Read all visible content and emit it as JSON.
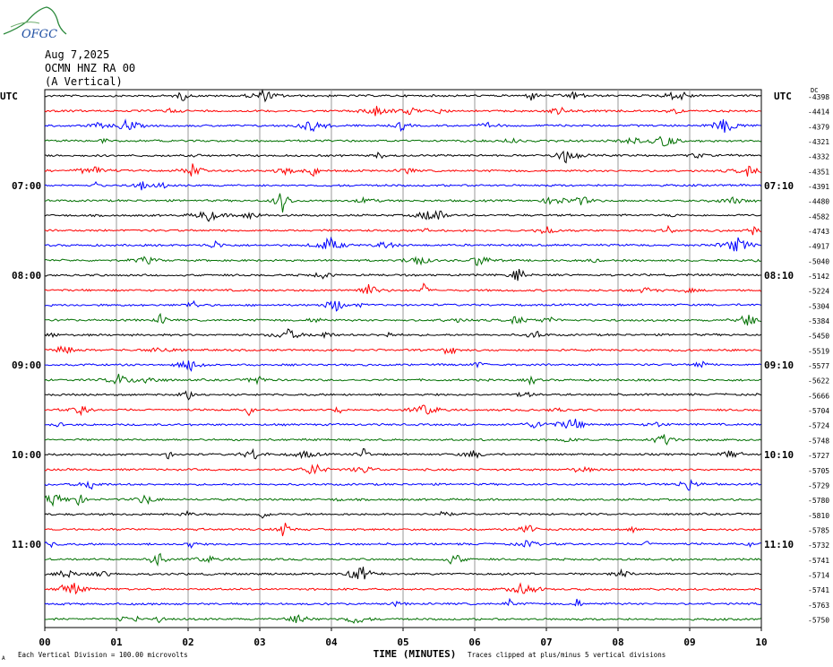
{
  "header": {
    "logo_text": "OFGC",
    "date": "Aug 7,2025",
    "station": "OCMN HNZ RA 00",
    "component": "(A Vertical)"
  },
  "chart_data": {
    "type": "line",
    "title": "",
    "left_axis_label": "UTC",
    "right_axis_label": "UTC",
    "units_label": "DC",
    "xlabel": "TIME (MINUTES)",
    "xlim": [
      0,
      10
    ],
    "x_ticks": [
      "00",
      "01",
      "02",
      "03",
      "04",
      "05",
      "06",
      "07",
      "08",
      "09",
      "10"
    ],
    "trace_colors": [
      "#000000",
      "#ff0000",
      "#0000ff",
      "#007000"
    ],
    "left_time_labels": [
      {
        "trace": 6,
        "text": "07:00"
      },
      {
        "trace": 12,
        "text": "08:00"
      },
      {
        "trace": 18,
        "text": "09:00"
      },
      {
        "trace": 24,
        "text": "10:00"
      },
      {
        "trace": 30,
        "text": "11:00"
      }
    ],
    "right_time_labels": [
      {
        "trace": 6,
        "text": "07:10"
      },
      {
        "trace": 12,
        "text": "08:10"
      },
      {
        "trace": 18,
        "text": "09:10"
      },
      {
        "trace": 24,
        "text": "10:10"
      },
      {
        "trace": 30,
        "text": "11:10"
      }
    ],
    "dc_offsets": [
      "-4398",
      "-4414",
      "-4379",
      "-4321",
      "-4332",
      "-4351",
      "-4391",
      "-4480",
      "-4582",
      "-4743",
      "-4917",
      "-5040",
      "-5142",
      "-5224",
      "-5304",
      "-5384",
      "-5450",
      "-5519",
      "-5577",
      "-5622",
      "-5666",
      "-5704",
      "-5724",
      "-5748",
      "-5727",
      "-5705",
      "-5729",
      "-5780",
      "-5810",
      "-5785",
      "-5732",
      "-5741",
      "-5714",
      "-5741",
      "-5763",
      "-5750"
    ],
    "footer_left": "Each Vertical Division =  100.00 microvolts",
    "footer_right": "Traces clipped at plus/minus 5 vertical divisions",
    "footer_mark": "A"
  }
}
